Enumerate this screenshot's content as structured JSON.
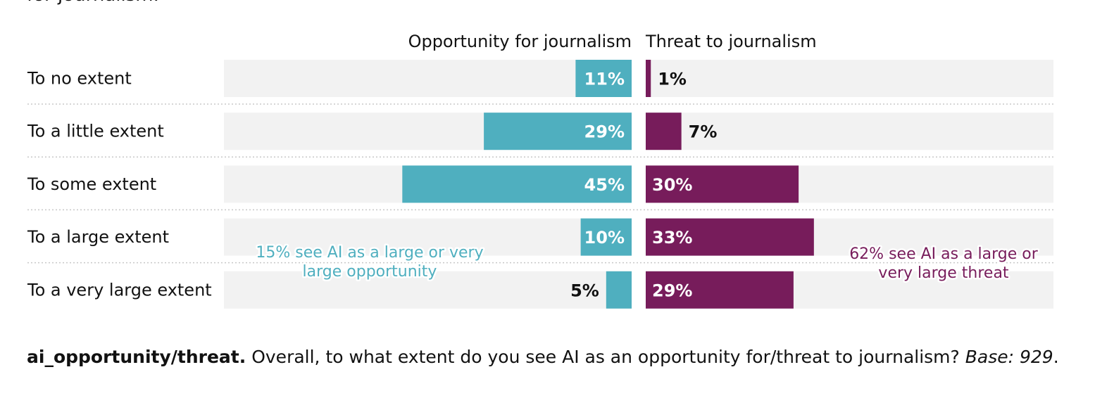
{
  "page_heading_fragment": "for journalism.",
  "chart_data": {
    "type": "bar",
    "orientation": "horizontal-diverging",
    "categories": [
      "To no extent",
      "To a little extent",
      "To some extent",
      "To a large extent",
      "To a very large extent"
    ],
    "series": [
      {
        "name": "Opportunity for journalism",
        "values": [
          11,
          29,
          45,
          10,
          5
        ],
        "color": "#4FAFBF"
      },
      {
        "name": "Threat to journalism",
        "values": [
          1,
          7,
          30,
          33,
          29
        ],
        "color": "#771C5B"
      }
    ],
    "value_suffix": "%",
    "xlim": [
      0,
      80
    ],
    "annotations": [
      {
        "series": "Opportunity for journalism",
        "lines": [
          "15% see AI as a large or very",
          "large opportunity"
        ]
      },
      {
        "series": "Threat to journalism",
        "lines": [
          "62% see AI as a large or",
          "very large threat"
        ]
      }
    ],
    "background_track_color": "#F2F2F2"
  },
  "caption": {
    "question_id": "ai_opportunity/threat.",
    "question_text": " Overall, to what extent do you see AI as an opportunity for/threat to journalism? ",
    "base": "Base: 929",
    "end": "."
  }
}
